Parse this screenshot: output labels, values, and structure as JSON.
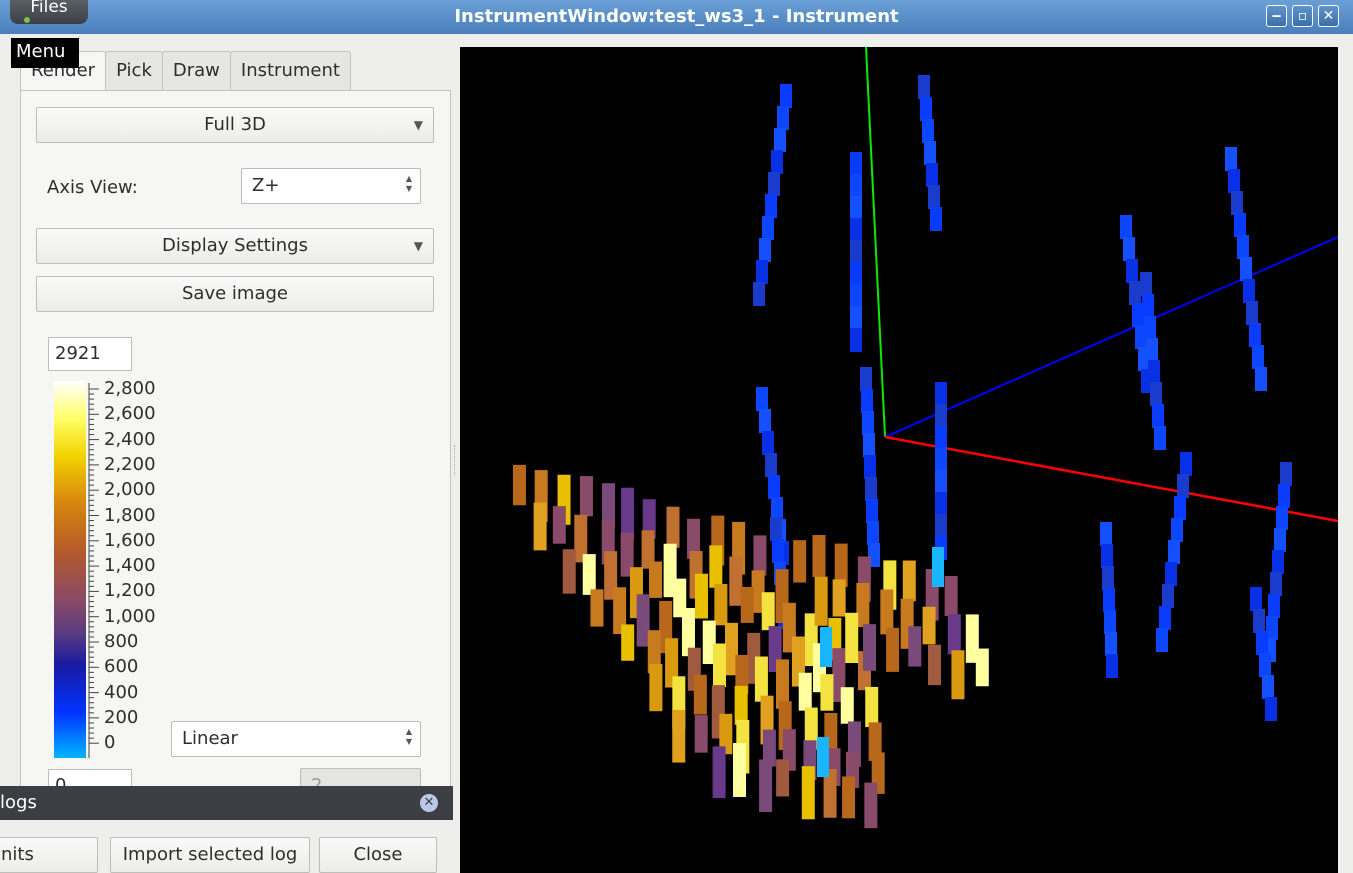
{
  "window": {
    "title": "InstrumentWindow:test_ws3_1 - Instrument",
    "controls": [
      "minimize",
      "maximize",
      "close"
    ]
  },
  "taskbar": {
    "files_label": "Files",
    "menu_tooltip": "Menu"
  },
  "tabs": [
    {
      "label": "Render",
      "active": true
    },
    {
      "label": "Pick",
      "active": false
    },
    {
      "label": "Draw",
      "active": false
    },
    {
      "label": "Instrument",
      "active": false
    }
  ],
  "render": {
    "projection": "Full 3D",
    "axis_view_label": "Axis View:",
    "axis_view_value": "Z+",
    "display_settings": "Display Settings",
    "save_image": "Save image",
    "max_value": "2921",
    "min_value": "0",
    "scale_type": "Linear",
    "power_value": "2"
  },
  "colorbar": {
    "labels": [
      "2,800",
      "2,600",
      "2,400",
      "2,200",
      "2,000",
      "1,800",
      "1,600",
      "1,400",
      "1,200",
      "1,000",
      "800",
      "600",
      "400",
      "200",
      "0"
    ]
  },
  "dock": {
    "title": "logs",
    "units_button": "nits",
    "import_button": "Import selected log",
    "close_button": "Close"
  },
  "colors": {
    "x_axis": "#ff0000",
    "y_axis": "#00ff00",
    "z_axis": "#0000ff",
    "viewport_bg": "#000000"
  },
  "viewport": {
    "axes": [
      "x",
      "y",
      "z"
    ]
  }
}
